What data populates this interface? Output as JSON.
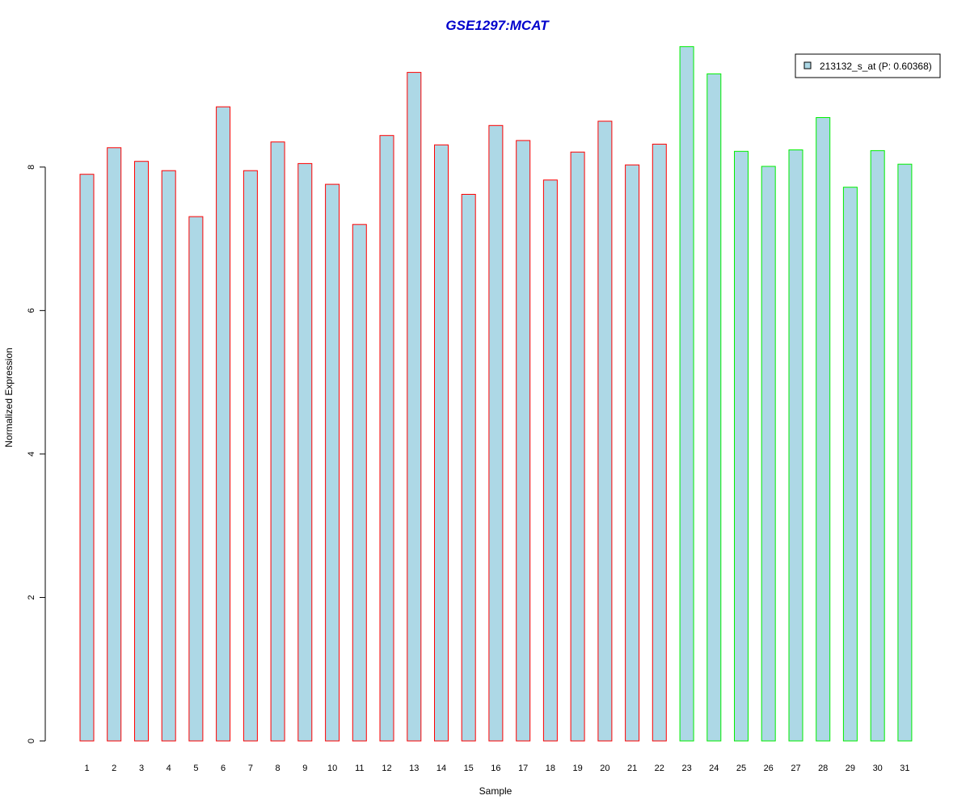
{
  "chart_data": {
    "type": "bar",
    "title": "GSE1297:MCAT",
    "xlabel": "Sample",
    "ylabel": "Normalized Expression",
    "ylim": [
      0,
      9.8
    ],
    "yticks": [
      "0",
      "2",
      "4",
      "6",
      "8"
    ],
    "grid": false,
    "legend_position": "top-right",
    "categories": [
      "1",
      "2",
      "3",
      "4",
      "5",
      "6",
      "7",
      "8",
      "9",
      "10",
      "11",
      "12",
      "13",
      "14",
      "15",
      "16",
      "17",
      "18",
      "19",
      "20",
      "21",
      "22",
      "23",
      "24",
      "25",
      "26",
      "27",
      "28",
      "29",
      "30",
      "31"
    ],
    "series": [
      {
        "name": "213132_s_at (P: 0.60368)",
        "values": [
          7.9,
          8.27,
          8.08,
          7.95,
          7.31,
          8.84,
          7.95,
          8.35,
          8.05,
          7.76,
          7.2,
          8.44,
          9.32,
          8.31,
          7.62,
          8.58,
          8.37,
          7.82,
          8.21,
          8.64,
          8.03,
          8.32,
          9.68,
          9.3,
          8.22,
          8.01,
          8.24,
          8.69,
          7.72,
          8.23,
          8.04
        ]
      }
    ],
    "bar_fill": "#add8e6",
    "group_outline_colors": [
      "#ff0000",
      "#00ee00"
    ],
    "group_sizes": [
      22,
      9
    ],
    "legend_swatch": "#add8e6"
  }
}
